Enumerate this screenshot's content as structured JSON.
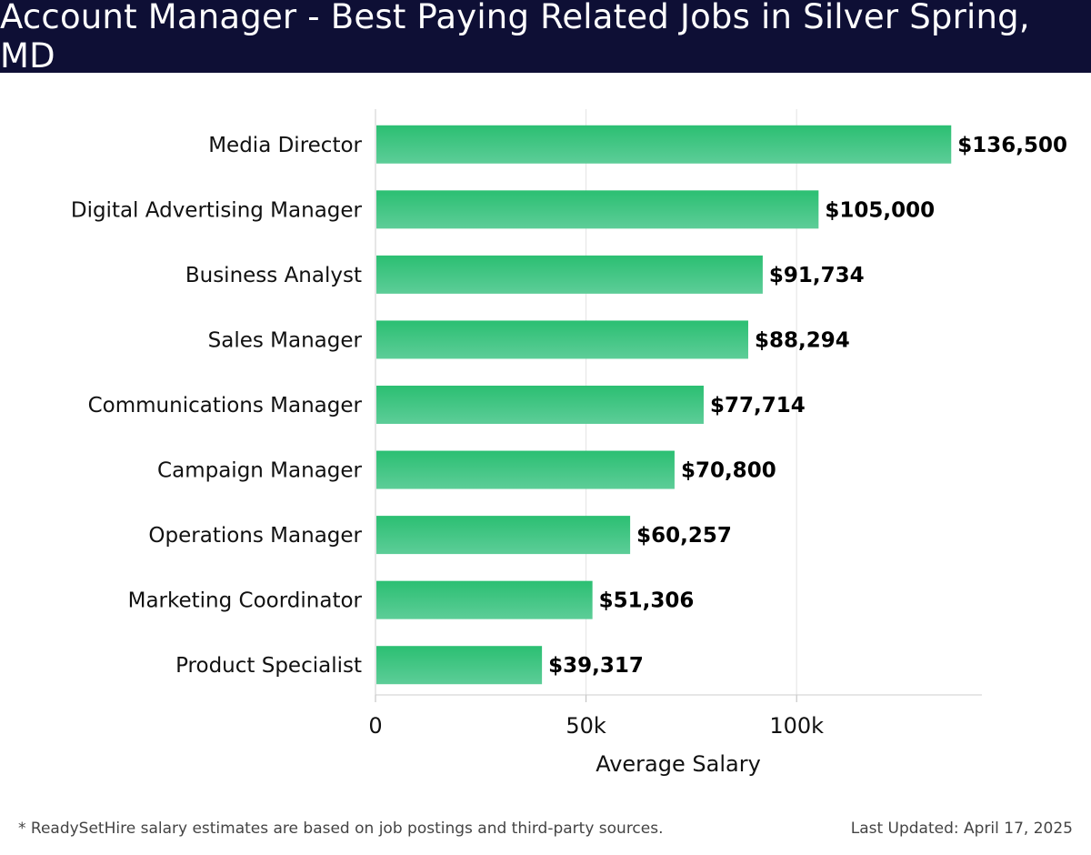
{
  "page": {
    "title": "Account Manager - Best Paying Related Jobs in Silver Spring, MD",
    "footnote": "* ReadySetHire salary estimates are based on job postings and third-party sources.",
    "last_updated": "Last Updated: April 17, 2025"
  },
  "colors": {
    "header_bg": "#0e0f35",
    "bar_top": "#2bbf72",
    "bar_bottom": "#5dcd98"
  },
  "chart_data": {
    "type": "bar",
    "orientation": "horizontal",
    "title": "Account Manager - Best Paying Related Jobs in Silver Spring, MD",
    "xlabel": "Average Salary",
    "ylabel": "",
    "xlim": [
      0,
      144000
    ],
    "xticks": [
      0,
      50000,
      100000
    ],
    "xtick_labels": [
      "0",
      "50k",
      "100k"
    ],
    "grid": true,
    "categories": [
      "Media Director",
      "Digital Advertising Manager",
      "Business Analyst",
      "Sales Manager",
      "Communications Manager",
      "Campaign Manager",
      "Operations Manager",
      "Marketing Coordinator",
      "Product Specialist"
    ],
    "values": [
      136500,
      105000,
      91734,
      88294,
      77714,
      70800,
      60257,
      51306,
      39317
    ],
    "value_labels": [
      "$136,500",
      "$105,000",
      "$91,734",
      "$88,294",
      "$77,714",
      "$70,800",
      "$60,257",
      "$51,306",
      "$39,317"
    ]
  }
}
